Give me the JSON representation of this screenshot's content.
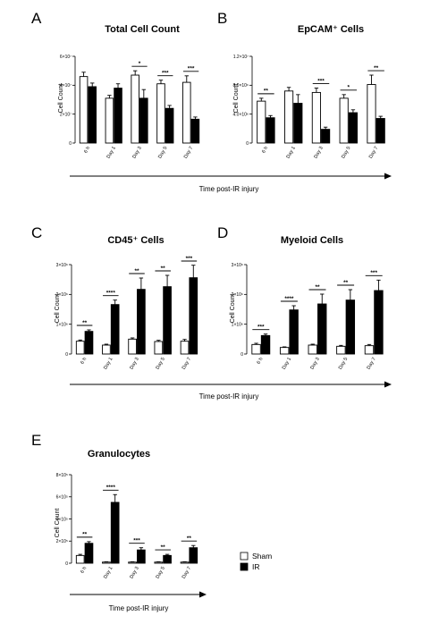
{
  "legend": {
    "sham": "Sham",
    "ir": "IR"
  },
  "colors": {
    "sham": "#ffffff",
    "ir": "#000000",
    "stroke": "#000000"
  },
  "x_caption": "Time post-IR injury",
  "chart_data": [
    {
      "type": "bar",
      "letter": "A",
      "title": "Total Cell Count",
      "ylabel": "Cell Count",
      "categories": [
        "6 h",
        "Day 1",
        "Day 3",
        "Day 5",
        "Day 7"
      ],
      "ylim": [
        0,
        60000000
      ],
      "yticks": [
        0,
        20000000,
        40000000,
        60000000
      ],
      "ytick_labels": [
        "0",
        "2×10⁷",
        "4×10⁷",
        "6×10⁷"
      ],
      "series": [
        {
          "name": "Sham",
          "values": [
            46000000,
            31000000,
            47000000,
            41000000,
            42000000
          ],
          "errors": [
            3000000,
            2000000,
            3000000,
            2500000,
            4500000
          ]
        },
        {
          "name": "IR",
          "values": [
            39000000,
            38000000,
            31000000,
            24000000,
            16500000
          ],
          "errors": [
            2500000,
            3000000,
            6000000,
            2000000,
            1500000
          ]
        }
      ],
      "significance": [
        "",
        "",
        "*",
        "***",
        "***"
      ]
    },
    {
      "type": "bar",
      "letter": "B",
      "title": "EpCAM⁺ Cells",
      "ylabel": "Cell Count",
      "categories": [
        "6 h",
        "Day 1",
        "Day 3",
        "Day 5",
        "Day 7"
      ],
      "ylim": [
        0,
        12000000
      ],
      "yticks": [
        0,
        4000000,
        8000000,
        12000000
      ],
      "ytick_labels": [
        "0",
        "4.0×10⁶",
        "8.0×10⁶",
        "1.2×10⁷"
      ],
      "series": [
        {
          "name": "Sham",
          "values": [
            5800000,
            7200000,
            7000000,
            6200000,
            8100000
          ],
          "errors": [
            400000,
            500000,
            600000,
            500000,
            1300000
          ]
        },
        {
          "name": "IR",
          "values": [
            3500000,
            5500000,
            1900000,
            4200000,
            3400000
          ],
          "errors": [
            300000,
            1200000,
            300000,
            400000,
            300000
          ]
        }
      ],
      "significance": [
        "**",
        "",
        "***",
        "*",
        "**"
      ]
    },
    {
      "type": "bar",
      "letter": "C",
      "title": "CD45⁺ Cells",
      "ylabel": "Cell Count",
      "categories": [
        "6 h",
        "Day 1",
        "Day 3",
        "Day 5",
        "Day 7"
      ],
      "ylim": [
        0,
        3000000
      ],
      "yticks": [
        0,
        1000000,
        2000000,
        3000000
      ],
      "ytick_labels": [
        "0",
        "1×10⁶",
        "2×10⁶",
        "3×10⁶"
      ],
      "series": [
        {
          "name": "Sham",
          "values": [
            430000,
            300000,
            500000,
            420000,
            430000
          ],
          "errors": [
            40000,
            30000,
            40000,
            40000,
            60000
          ]
        },
        {
          "name": "IR",
          "values": [
            760000,
            1660000,
            2170000,
            2260000,
            2560000
          ],
          "errors": [
            50000,
            150000,
            380000,
            380000,
            420000
          ]
        }
      ],
      "significance": [
        "**",
        "****",
        "**",
        "**",
        "***"
      ]
    },
    {
      "type": "bar",
      "letter": "D",
      "title": "Myeloid Cells",
      "ylabel": "Cell Count",
      "categories": [
        "6 h",
        "Day 1",
        "Day 3",
        "Day 5",
        "Day 7"
      ],
      "ylim": [
        0,
        3000000
      ],
      "yticks": [
        0,
        1000000,
        2000000,
        3000000
      ],
      "ytick_labels": [
        "0",
        "1×10⁶",
        "2×10⁶",
        "3×10⁶"
      ],
      "series": [
        {
          "name": "Sham",
          "values": [
            320000,
            220000,
            300000,
            260000,
            280000
          ],
          "errors": [
            40000,
            20000,
            30000,
            30000,
            40000
          ]
        },
        {
          "name": "IR",
          "values": [
            620000,
            1480000,
            1680000,
            1810000,
            2130000
          ],
          "errors": [
            50000,
            140000,
            330000,
            350000,
            350000
          ]
        }
      ],
      "significance": [
        "***",
        "****",
        "**",
        "**",
        "***"
      ]
    },
    {
      "type": "bar",
      "letter": "E",
      "title": "Granulocytes",
      "ylabel": "Cell Count",
      "categories": [
        "6 h",
        "Day 1",
        "Day 3",
        "Day 5",
        "Day 7"
      ],
      "ylim": [
        0,
        800000
      ],
      "yticks": [
        0,
        200000,
        400000,
        600000,
        800000
      ],
      "ytick_labels": [
        "0",
        "2×10⁵",
        "4×10⁵",
        "6×10⁵",
        "8×10⁵"
      ],
      "series": [
        {
          "name": "Sham",
          "values": [
            70000,
            10000,
            10000,
            10000,
            10000
          ],
          "errors": [
            10000,
            3000,
            3000,
            3000,
            3000
          ]
        },
        {
          "name": "IR",
          "values": [
            180000,
            550000,
            120000,
            70000,
            140000
          ],
          "errors": [
            15000,
            70000,
            20000,
            10000,
            20000
          ]
        }
      ],
      "significance": [
        "**",
        "****",
        "***",
        "**",
        "**"
      ]
    }
  ]
}
